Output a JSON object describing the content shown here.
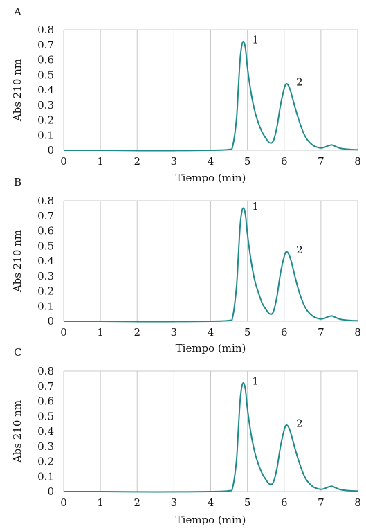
{
  "chart_data": [
    {
      "type": "line",
      "panel": "A",
      "xlabel": "Tiempo (min)",
      "ylabel": "Abs 210 nm",
      "xlim": [
        0,
        8
      ],
      "ylim": [
        0,
        0.8
      ],
      "xticks": [
        "0",
        "1",
        "2",
        "3",
        "4",
        "5",
        "6",
        "7",
        "8"
      ],
      "yticks": [
        "0",
        "0.1",
        "0.2",
        "0.3",
        "0.4",
        "0.5",
        "0.6",
        "0.7",
        "0.8"
      ],
      "grid": true,
      "color": "#1f8a8c",
      "x": [
        0,
        1,
        2,
        3,
        4,
        4.5,
        4.6,
        4.7,
        4.75,
        4.8,
        4.85,
        4.9,
        4.95,
        5.0,
        5.1,
        5.2,
        5.3,
        5.4,
        5.5,
        5.6,
        5.7,
        5.8,
        5.9,
        6.0,
        6.05,
        6.1,
        6.15,
        6.2,
        6.3,
        6.4,
        6.5,
        6.6,
        6.7,
        6.8,
        6.9,
        7.0,
        7.1,
        7.2,
        7.3,
        7.4,
        7.5,
        7.6,
        7.8,
        8.0
      ],
      "values": [
        0.0,
        0.0,
        -0.002,
        -0.002,
        0.0,
        0.005,
        0.03,
        0.2,
        0.4,
        0.6,
        0.7,
        0.72,
        0.67,
        0.55,
        0.38,
        0.26,
        0.18,
        0.12,
        0.08,
        0.05,
        0.06,
        0.15,
        0.3,
        0.41,
        0.44,
        0.435,
        0.41,
        0.37,
        0.28,
        0.2,
        0.13,
        0.08,
        0.05,
        0.03,
        0.02,
        0.015,
        0.02,
        0.03,
        0.035,
        0.025,
        0.015,
        0.01,
        0.005,
        0.003
      ],
      "peak_labels": [
        {
          "text": "1",
          "x": 4.9,
          "y": 0.72
        },
        {
          "text": "2",
          "x": 6.1,
          "y": 0.44
        }
      ]
    },
    {
      "type": "line",
      "panel": "B",
      "xlabel": "Tiempo (min)",
      "ylabel": "Abs 210 nm",
      "xlim": [
        0,
        8
      ],
      "ylim": [
        0,
        0.8
      ],
      "xticks": [
        "0",
        "1",
        "2",
        "3",
        "4",
        "5",
        "6",
        "7",
        "8"
      ],
      "yticks": [
        "0",
        "0.1",
        "0.2",
        "0.3",
        "0.4",
        "0.5",
        "0.6",
        "0.7",
        "0.8"
      ],
      "grid": true,
      "color": "#1f8a8c",
      "x": [
        0,
        1,
        2,
        3,
        4,
        4.5,
        4.6,
        4.7,
        4.75,
        4.8,
        4.85,
        4.9,
        4.95,
        5.0,
        5.1,
        5.2,
        5.3,
        5.4,
        5.5,
        5.6,
        5.7,
        5.8,
        5.9,
        6.0,
        6.05,
        6.1,
        6.15,
        6.2,
        6.3,
        6.4,
        6.5,
        6.6,
        6.7,
        6.8,
        6.9,
        7.0,
        7.1,
        7.2,
        7.3,
        7.4,
        7.5,
        7.6,
        7.8,
        8.0
      ],
      "values": [
        0.0,
        0.0,
        -0.002,
        -0.002,
        0.0,
        0.005,
        0.03,
        0.22,
        0.42,
        0.63,
        0.73,
        0.75,
        0.7,
        0.58,
        0.4,
        0.27,
        0.19,
        0.12,
        0.08,
        0.05,
        0.06,
        0.16,
        0.32,
        0.43,
        0.46,
        0.455,
        0.43,
        0.39,
        0.29,
        0.2,
        0.13,
        0.08,
        0.05,
        0.03,
        0.02,
        0.015,
        0.02,
        0.03,
        0.035,
        0.025,
        0.015,
        0.01,
        0.005,
        0.003
      ],
      "peak_labels": [
        {
          "text": "1",
          "x": 4.9,
          "y": 0.75
        },
        {
          "text": "2",
          "x": 6.1,
          "y": 0.46
        }
      ]
    },
    {
      "type": "line",
      "panel": "C",
      "xlabel": "Tiempo (min)",
      "ylabel": "Abs 210 nm",
      "xlim": [
        0,
        8
      ],
      "ylim": [
        0,
        0.8
      ],
      "xticks": [
        "0",
        "1",
        "2",
        "3",
        "4",
        "5",
        "6",
        "7",
        "8"
      ],
      "yticks": [
        "0",
        "0.1",
        "0.2",
        "0.3",
        "0.4",
        "0.5",
        "0.6",
        "0.7",
        "0.8"
      ],
      "grid": true,
      "color": "#1f8a8c",
      "x": [
        0,
        1,
        2,
        3,
        4,
        4.5,
        4.6,
        4.7,
        4.75,
        4.8,
        4.85,
        4.9,
        4.95,
        5.0,
        5.1,
        5.2,
        5.3,
        5.4,
        5.5,
        5.6,
        5.7,
        5.8,
        5.9,
        6.0,
        6.05,
        6.1,
        6.15,
        6.2,
        6.3,
        6.4,
        6.5,
        6.6,
        6.7,
        6.8,
        6.9,
        7.0,
        7.1,
        7.2,
        7.3,
        7.4,
        7.5,
        7.6,
        7.8,
        8.0
      ],
      "values": [
        0.0,
        0.0,
        -0.002,
        -0.002,
        0.0,
        0.005,
        0.03,
        0.2,
        0.4,
        0.6,
        0.7,
        0.72,
        0.67,
        0.55,
        0.38,
        0.26,
        0.18,
        0.12,
        0.08,
        0.05,
        0.06,
        0.15,
        0.3,
        0.41,
        0.44,
        0.435,
        0.41,
        0.37,
        0.28,
        0.2,
        0.13,
        0.08,
        0.05,
        0.03,
        0.02,
        0.015,
        0.02,
        0.03,
        0.035,
        0.025,
        0.015,
        0.01,
        0.005,
        0.003
      ],
      "peak_labels": [
        {
          "text": "1",
          "x": 4.9,
          "y": 0.72
        },
        {
          "text": "2",
          "x": 6.1,
          "y": 0.44
        }
      ]
    }
  ]
}
